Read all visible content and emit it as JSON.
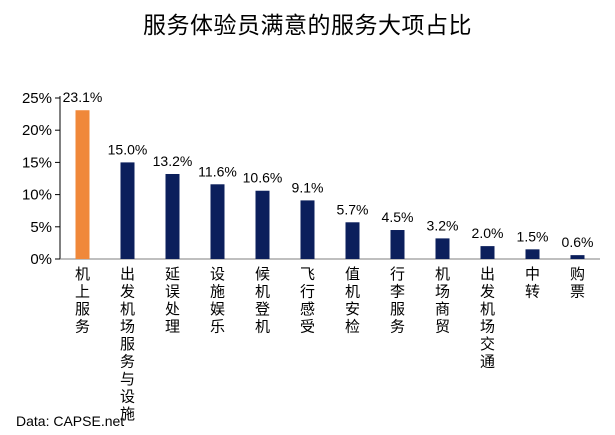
{
  "chart_data": {
    "type": "bar",
    "title": "服务体验员满意的服务大项占比",
    "categories": [
      "机上服务",
      "出发机场服务与设施",
      "延误处理",
      "设施娱乐",
      "候机登机",
      "飞行感受",
      "值机安检",
      "行李服务",
      "机场商贸",
      "出发机场交通",
      "中转",
      "购票"
    ],
    "values": [
      23.1,
      15.0,
      13.2,
      11.6,
      10.6,
      9.1,
      5.7,
      4.5,
      3.2,
      2.0,
      1.5,
      0.6
    ],
    "data_labels": [
      "23.1%",
      "15.0%",
      "13.2%",
      "11.6%",
      "10.6%",
      "9.1%",
      "5.7%",
      "4.5%",
      "3.2%",
      "2.0%",
      "1.5%",
      "0.6%"
    ],
    "yticks": [
      0,
      5,
      10,
      15,
      20,
      25
    ],
    "ytick_labels": [
      "0%",
      "5%",
      "10%",
      "15%",
      "20%",
      "25%"
    ],
    "ylim": [
      0,
      25
    ],
    "xlabel": "",
    "ylabel": "",
    "grid": false,
    "highlight_index": 0,
    "colors": {
      "highlight": "#F0883A",
      "default": "#0B1F5C",
      "axis": "#000000"
    }
  },
  "source_text": "Data: CAPSE.net"
}
